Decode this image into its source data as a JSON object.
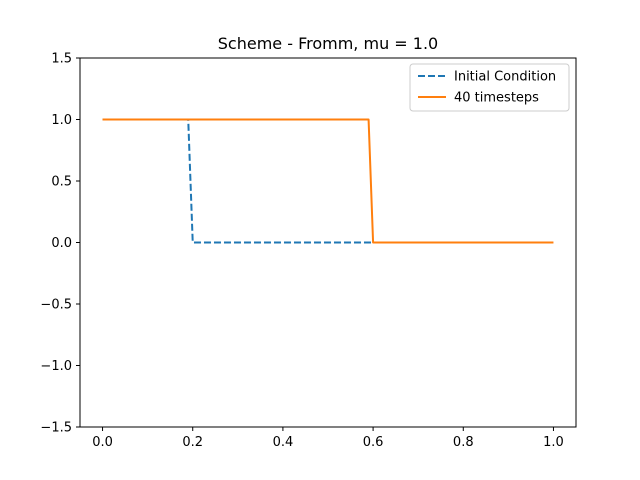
{
  "chart_data": {
    "type": "line",
    "title": "Scheme - Fromm, mu = 1.0",
    "xlabel": "",
    "ylabel": "",
    "xlim": [
      -0.05,
      1.05
    ],
    "ylim": [
      -1.5,
      1.5
    ],
    "xticks": [
      0.0,
      0.2,
      0.4,
      0.6,
      0.8,
      1.0
    ],
    "xtick_labels": [
      "0.0",
      "0.2",
      "0.4",
      "0.6",
      "0.8",
      "1.0"
    ],
    "yticks": [
      -1.5,
      -1.0,
      -0.5,
      0.0,
      0.5,
      1.0,
      1.5
    ],
    "ytick_labels": [
      "−1.5",
      "−1.0",
      "−0.5",
      "0.0",
      "0.5",
      "1.0",
      "1.5"
    ],
    "grid": false,
    "legend_position": "top-right",
    "series": [
      {
        "name": "Initial Condition",
        "color": "#1f77b4",
        "linestyle": "dashed",
        "x": [
          0.0,
          0.19,
          0.2,
          1.0
        ],
        "y": [
          1.0,
          1.0,
          0.0,
          0.0
        ]
      },
      {
        "name": "40 timesteps",
        "color": "#ff7f0e",
        "linestyle": "solid",
        "x": [
          0.0,
          0.59,
          0.6,
          1.0
        ],
        "y": [
          1.0,
          1.0,
          0.0,
          0.0
        ]
      }
    ]
  }
}
